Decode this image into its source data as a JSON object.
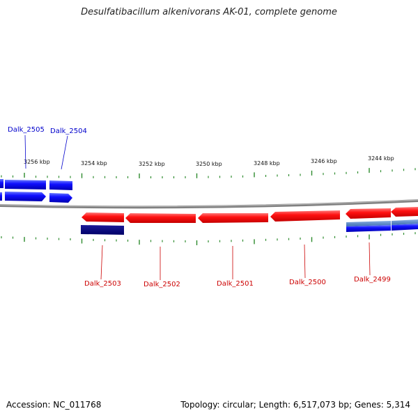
{
  "title": "Desulfatibacillum alkenivorans AK-01, complete genome",
  "footer": {
    "accession": "Accession: NC_011768",
    "summary": "Topology: circular; Length: 6,517,073 bp; Genes: 5,314"
  },
  "scale_labels": [
    "3256 kbp",
    "3254 kbp",
    "3252 kbp",
    "3250 kbp",
    "3248 kbp",
    "3246 kbp",
    "3244 kbp"
  ],
  "genes_top": [
    {
      "label": "Dalk_2505",
      "color": "#0000cc"
    },
    {
      "label": "Dalk_2504",
      "color": "#0000cc"
    }
  ],
  "genes_bottom": [
    {
      "label": "Dalk_2503",
      "color": "#cc0000"
    },
    {
      "label": "Dalk_2502",
      "color": "#cc0000"
    },
    {
      "label": "Dalk_2501",
      "color": "#cc0000"
    },
    {
      "label": "Dalk_2500",
      "color": "#cc0000"
    },
    {
      "label": "Dalk_2499",
      "color": "#cc0000"
    }
  ],
  "colors": {
    "forward": "#1a1aff",
    "reverse": "#ff1a1a",
    "dark_blue": "#000080",
    "steel_blue": "#5a8fd0",
    "ticks": "#2e8b2e",
    "backbone": "#808080"
  }
}
